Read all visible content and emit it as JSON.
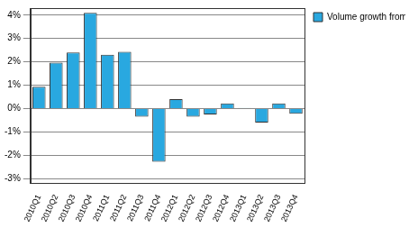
{
  "chart_data": {
    "type": "bar",
    "categories": [
      "2010Q1",
      "2010Q2",
      "2010Q3",
      "2010Q4",
      "2011Q1",
      "2011Q2",
      "2011Q3",
      "2011Q4",
      "2012Q1",
      "2012Q2",
      "2012Q3",
      "2012Q4",
      "2013Q1",
      "2013Q2",
      "2013Q3",
      "2013Q4"
    ],
    "series": [
      {
        "name": "Volume growth from one year ago",
        "color": "#29a8e0",
        "values": [
          0.93,
          1.97,
          2.4,
          4.1,
          2.3,
          2.43,
          -0.35,
          -2.28,
          0.4,
          -0.35,
          -0.25,
          0.22,
          0.03,
          -0.6,
          0.22,
          -0.22
        ]
      }
    ],
    "ylim": [
      -3.2,
      4.3
    ],
    "yticks": [
      {
        "value": -3,
        "label": "-3%"
      },
      {
        "value": -2,
        "label": "-2%"
      },
      {
        "value": -1,
        "label": "-1%"
      },
      {
        "value": 0,
        "label": "0%"
      },
      {
        "value": 1,
        "label": "1%"
      },
      {
        "value": 2,
        "label": "2%"
      },
      {
        "value": 3,
        "label": "3%"
      },
      {
        "value": 4,
        "label": "4%"
      }
    ],
    "grid": true,
    "legend": "right"
  }
}
